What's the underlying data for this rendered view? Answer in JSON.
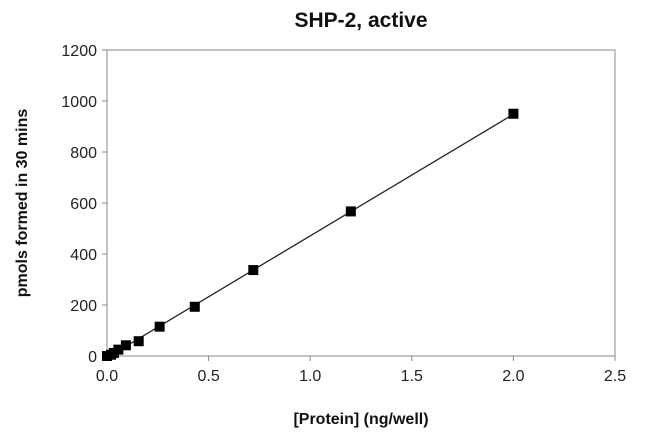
{
  "chart_data": {
    "type": "scatter",
    "title": "SHP-2, active",
    "xlabel": "[Protein] (ng/well)",
    "ylabel": "pmols formed in 30 mins",
    "xlim": [
      0,
      2.5
    ],
    "ylim": [
      0,
      1200
    ],
    "xticks": [
      "0.0",
      "0.5",
      "1.0",
      "1.5",
      "2.0",
      "2.5"
    ],
    "yticks": [
      "0",
      "200",
      "400",
      "600",
      "800",
      "1000",
      "1200"
    ],
    "grid": false,
    "trendline": "linear",
    "marker": "square",
    "color": "#000000",
    "x": [
      0,
      0.02,
      0.034,
      0.056,
      0.093,
      0.156,
      0.259,
      0.432,
      0.72,
      1.2,
      2.0
    ],
    "y": [
      0,
      5,
      12,
      25,
      42,
      58,
      115,
      193,
      337,
      567,
      950
    ]
  }
}
